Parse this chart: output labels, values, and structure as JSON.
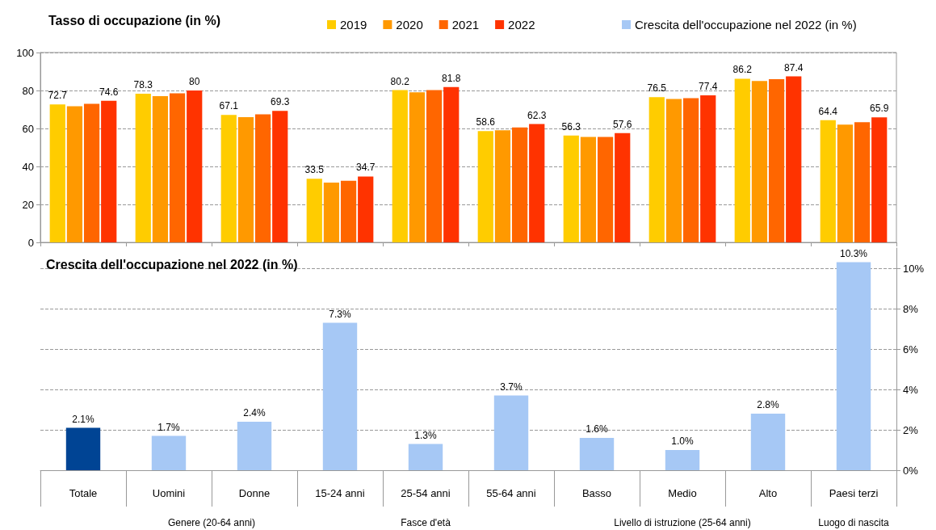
{
  "chart_data": [
    {
      "type": "bar",
      "title": "Tasso di occupazione (in %)",
      "categories": [
        null,
        null,
        null,
        null,
        null,
        null,
        null,
        null,
        null,
        null
      ],
      "series": [
        {
          "name": "2019",
          "color": "#ffcc00",
          "values": [
            72.7,
            78.3,
            67.1,
            33.5,
            80.2,
            58.6,
            56.3,
            76.5,
            86.2,
            64.4
          ],
          "value_labels": [
            "72.7",
            "78.3",
            "67.1",
            "33.5",
            "80.2",
            "58.6",
            "56.3",
            "76.5",
            "86.2",
            "64.4"
          ]
        },
        {
          "name": "2020",
          "color": "#ff9900",
          "values": [
            71.7,
            77.0,
            66.0,
            31.5,
            79.0,
            59.0,
            55.5,
            75.5,
            85.0,
            62.0
          ]
        },
        {
          "name": "2021",
          "color": "#ff6600",
          "values": [
            73.0,
            78.5,
            67.5,
            32.5,
            80.2,
            60.5,
            55.5,
            76.0,
            86.0,
            63.3
          ]
        },
        {
          "name": "2022",
          "color": "#ff3300",
          "values": [
            74.6,
            80,
            69.3,
            34.7,
            81.8,
            62.3,
            57.6,
            77.4,
            87.4,
            65.9
          ],
          "value_labels": [
            "74.6",
            "80",
            "69.3",
            "34.7",
            "81.8",
            "62.3",
            "57.6",
            "77.4",
            "87.4",
            "65.9"
          ]
        }
      ],
      "ylim": [
        0,
        100
      ],
      "yticks": [
        0,
        20,
        40,
        60,
        80,
        100
      ],
      "grid": "y",
      "legend": "top",
      "tick_labels": "y"
    },
    {
      "type": "bar",
      "title": "Crescita dell'occupazione nel 2022 (in %)",
      "categories": [
        "Totale",
        "Uomini",
        "Donne",
        "15-24 anni",
        "25-54 anni",
        "55-64 anni",
        "Basso",
        "Medio",
        "Alto",
        "Paesi terzi"
      ],
      "series": [
        {
          "name": "Crescita dell'occupazione nel 2022 (in %)",
          "color": "#a6c8f5",
          "colors": [
            "#004494",
            "#a6c8f5",
            "#a6c8f5",
            "#a6c8f5",
            "#a6c8f5",
            "#a6c8f5",
            "#a6c8f5",
            "#a6c8f5",
            "#a6c8f5",
            "#a6c8f5"
          ],
          "values": [
            2.1,
            1.7,
            2.4,
            7.3,
            1.3,
            3.7,
            1.6,
            1.0,
            2.8,
            10.3
          ],
          "value_labels": [
            "2.1%",
            "1.7%",
            "2.4%",
            "7.3%",
            "1.3%",
            "3.7%",
            "1.6%",
            "1.0%",
            "2.8%",
            "10.3%"
          ]
        }
      ],
      "ylim": [
        0,
        11
      ],
      "yticks": [
        {
          "value": 0,
          "label": "0%"
        },
        {
          "value": 2,
          "label": "2%"
        },
        {
          "value": 4,
          "label": "4%"
        },
        {
          "value": 6,
          "label": "6%"
        },
        {
          "value": 8,
          "label": "8%"
        },
        {
          "value": 10,
          "label": "10%"
        }
      ],
      "grid": "y",
      "legend": "top right",
      "annotations": [
        "Genere (20-64 anni)",
        "Fasce d'età",
        "Livello di istruzione (25-64 anni)",
        "Luogo di nascita"
      ]
    }
  ]
}
